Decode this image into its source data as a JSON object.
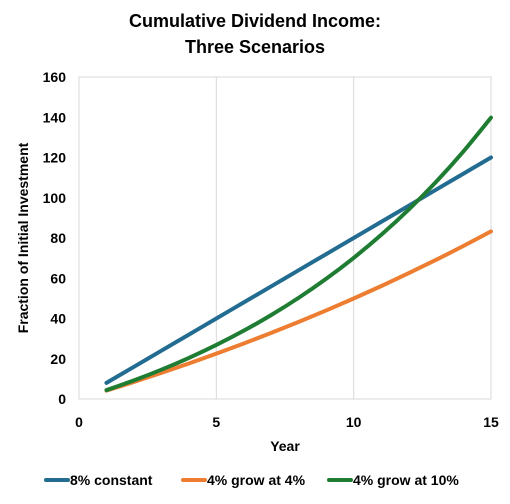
{
  "chart_data": {
    "type": "line",
    "title": [
      "Cumulative Dividend Income:",
      "Three Scenarios"
    ],
    "xlabel": "Year",
    "ylabel": "Fraction of Initial Investment",
    "xlim": [
      0,
      15
    ],
    "ylim": [
      0,
      160
    ],
    "x_ticks": [
      0,
      5,
      10,
      15
    ],
    "y_ticks": [
      0,
      20,
      40,
      60,
      80,
      100,
      120,
      140,
      160
    ],
    "grid": {
      "vertical": true,
      "horizontal": false
    },
    "legend_position": "bottom",
    "series": [
      {
        "name": "8% constant",
        "color": "#236c91",
        "x": [
          1,
          2,
          3,
          4,
          5,
          6,
          7,
          8,
          9,
          10,
          11,
          12,
          13,
          14,
          15
        ],
        "values": [
          8,
          16,
          24,
          32,
          40,
          48,
          56,
          64,
          72,
          80,
          88,
          96,
          104,
          112,
          120
        ]
      },
      {
        "name": "4% grow at 4%",
        "color": "#ed7d31",
        "x": [
          1,
          2,
          3,
          4,
          5,
          6,
          7,
          8,
          9,
          10,
          11,
          12,
          13,
          14,
          15
        ],
        "values": [
          4.16,
          8.49,
          12.99,
          17.66,
          22.53,
          27.59,
          32.85,
          38.32,
          44.01,
          49.93,
          56.09,
          62.49,
          69.15,
          76.07,
          83.27
        ]
      },
      {
        "name": "4% grow at 10%",
        "color": "#1e7d32",
        "x": [
          1,
          2,
          3,
          4,
          5,
          6,
          7,
          8,
          9,
          10,
          11,
          12,
          13,
          14,
          15
        ],
        "values": [
          4.4,
          9.24,
          14.56,
          20.42,
          26.86,
          33.95,
          41.74,
          50.31,
          59.75,
          70.12,
          81.54,
          94.09,
          107.9,
          123.09,
          139.8
        ]
      }
    ]
  }
}
